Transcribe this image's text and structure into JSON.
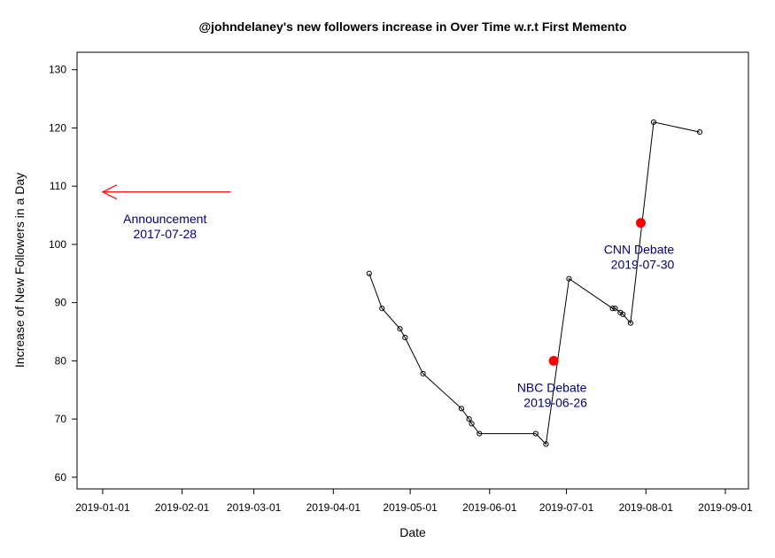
{
  "chart_data": {
    "type": "line",
    "title": "@johndelaney's new followers increase in Over Time w.r.t First Memento",
    "xlabel": "Date",
    "ylabel": "Increase of New Followers in a Day",
    "xlim": [
      "2018-12-22",
      "2019-09-10"
    ],
    "ylim": [
      58,
      133
    ],
    "x_ticks": [
      "2019-01-01",
      "2019-02-01",
      "2019-03-01",
      "2019-04-01",
      "2019-05-01",
      "2019-06-01",
      "2019-07-01",
      "2019-08-01",
      "2019-09-01"
    ],
    "y_ticks": [
      60,
      70,
      80,
      90,
      100,
      110,
      120,
      130
    ],
    "grid": false,
    "series": [
      {
        "color": "#000000",
        "marker": "open-circle",
        "points": [
          {
            "x": "2019-04-15",
            "y": 95
          },
          {
            "x": "2019-04-20",
            "y": 89
          },
          {
            "x": "2019-04-27",
            "y": 85.5
          },
          {
            "x": "2019-04-29",
            "y": 84
          },
          {
            "x": "2019-05-06",
            "y": 77.8
          },
          {
            "x": "2019-05-21",
            "y": 71.8
          },
          {
            "x": "2019-05-24",
            "y": 70
          },
          {
            "x": "2019-05-25",
            "y": 69.2
          },
          {
            "x": "2019-05-28",
            "y": 67.5
          },
          {
            "x": "2019-06-19",
            "y": 67.5
          },
          {
            "x": "2019-06-23",
            "y": 65.7
          },
          {
            "x": "2019-07-02",
            "y": 94.1
          },
          {
            "x": "2019-07-19",
            "y": 89
          },
          {
            "x": "2019-07-20",
            "y": 89
          },
          {
            "x": "2019-07-22",
            "y": 88.3
          },
          {
            "x": "2019-07-23",
            "y": 88
          },
          {
            "x": "2019-07-26",
            "y": 86.5
          },
          {
            "x": "2019-08-04",
            "y": 121
          },
          {
            "x": "2019-08-22",
            "y": 119.3
          }
        ]
      }
    ],
    "events": [
      {
        "x": "2019-06-26",
        "y": 80,
        "label": "NBC Debate",
        "date": "2019-06-26",
        "color": "#ff0000"
      },
      {
        "x": "2019-07-30",
        "y": 103.7,
        "label": "CNN Debate",
        "date": "2019-07-30",
        "color": "#ff0000"
      }
    ],
    "off_chart_event": {
      "label": "Announcement",
      "date": "2017-07-28",
      "arrow_y": 109,
      "arrow_x_from": "2019-02-20",
      "arrow_x_to": "2019-01-01",
      "arrow_color": "#ff0000"
    },
    "annotation_text_color": "#00007f"
  }
}
